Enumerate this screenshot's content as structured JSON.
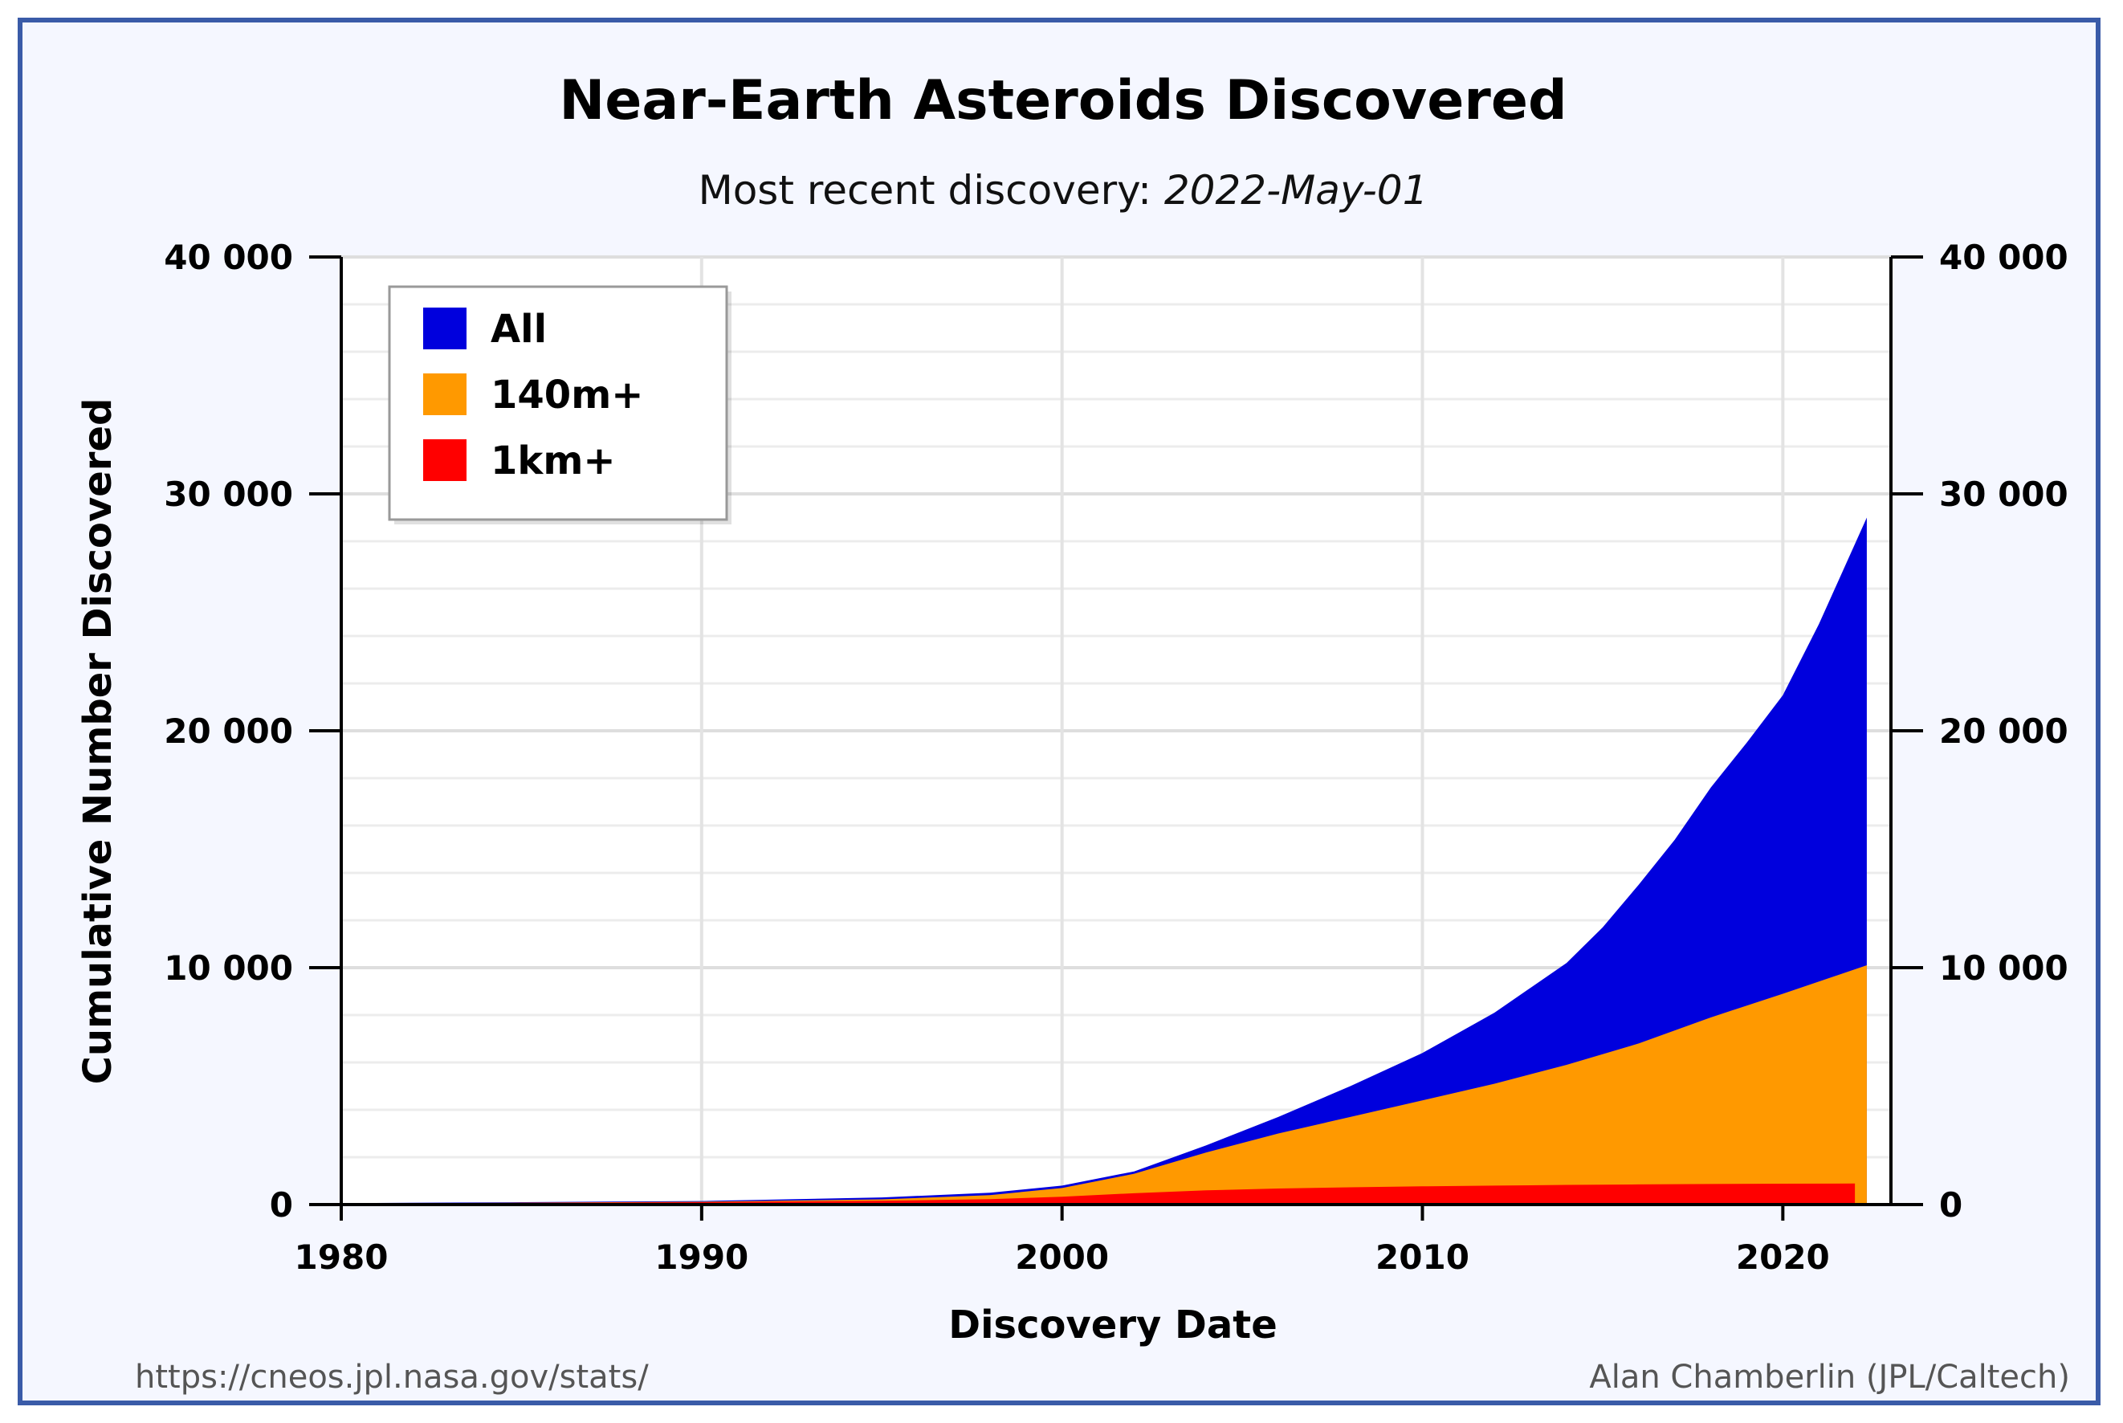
{
  "chart_data": {
    "type": "area",
    "title": "Near-Earth Asteroids Discovered",
    "subtitle_prefix": "Most recent discovery: ",
    "subtitle_date": "2022-May-01",
    "xlabel": "Discovery Date",
    "ylabel": "Cumulative Number Discovered",
    "xlim": [
      1980,
      2023
    ],
    "ylim": [
      0,
      40000
    ],
    "x_ticks": [
      1980,
      1990,
      2000,
      2010,
      2020
    ],
    "y_ticks": [
      0,
      10000,
      20000,
      30000,
      40000
    ],
    "y_tick_labels": [
      "0",
      "10 000",
      "20 000",
      "30 000",
      "40 000"
    ],
    "grid": true,
    "legend_position": "top-left",
    "series": [
      {
        "name": "All",
        "color": "#0000dd",
        "x": [
          1980,
          1985,
          1990,
          1995,
          1998,
          2000,
          2002,
          2004,
          2006,
          2008,
          2010,
          2012,
          2014,
          2015,
          2016,
          2017,
          2018,
          2019,
          2020,
          2021,
          2022.33
        ],
        "y": [
          60,
          100,
          150,
          300,
          500,
          800,
          1400,
          2500,
          3700,
          5000,
          6400,
          8100,
          10200,
          11700,
          13500,
          15400,
          17600,
          19500,
          21500,
          24500,
          29000
        ]
      },
      {
        "name": "140m+",
        "color": "#ff9900",
        "x": [
          1980,
          1985,
          1990,
          1995,
          1998,
          2000,
          2002,
          2004,
          2006,
          2008,
          2010,
          2012,
          2014,
          2016,
          2018,
          2020,
          2022.33
        ],
        "y": [
          50,
          80,
          120,
          220,
          400,
          700,
          1300,
          2200,
          3000,
          3700,
          4400,
          5100,
          5900,
          6800,
          7900,
          8900,
          10100
        ]
      },
      {
        "name": "1km+",
        "color": "#ff0000",
        "x": [
          1980,
          1985,
          1990,
          1995,
          1998,
          2000,
          2002,
          2004,
          2006,
          2008,
          2010,
          2012,
          2014,
          2016,
          2018,
          2020,
          2022.0
        ],
        "y": [
          40,
          70,
          100,
          160,
          230,
          330,
          480,
          600,
          680,
          730,
          770,
          800,
          830,
          850,
          870,
          880,
          890
        ]
      }
    ]
  },
  "footer": {
    "left": "https://cneos.jpl.nasa.gov/stats/",
    "right": "Alan Chamberlin (JPL/Caltech)"
  }
}
